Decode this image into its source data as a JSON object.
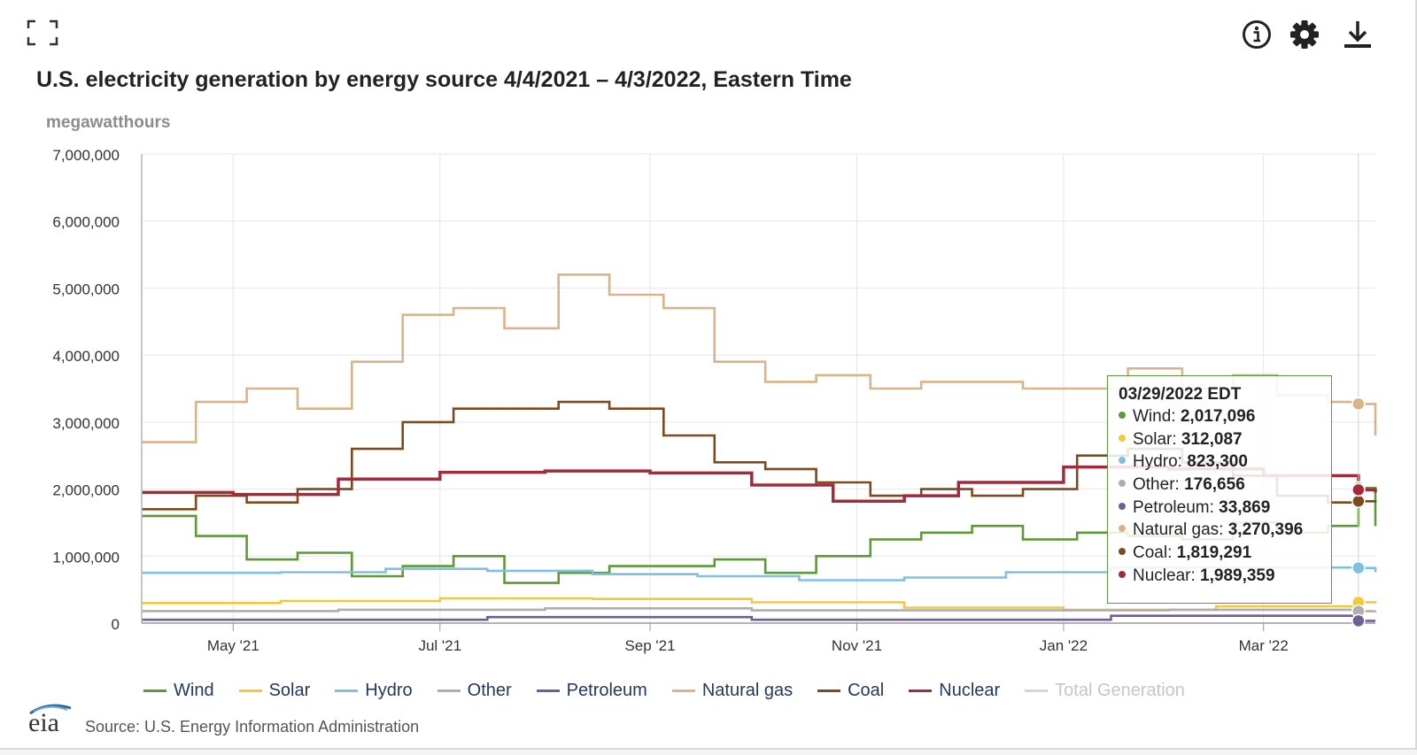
{
  "toolbar": {
    "fullscreen_icon": "fullscreen-icon",
    "info_icon": "info-icon",
    "settings_icon": "gear-icon",
    "download_icon": "download-icon"
  },
  "chart_data": {
    "type": "line",
    "title": "U.S. electricity generation by energy source 4/4/2021 – 4/3/2022, Eastern Time",
    "ylabel": "megawatthours",
    "xlabel": "",
    "ylim": [
      0,
      7000000
    ],
    "yticks": [
      "0",
      "1,000,000",
      "2,000,000",
      "3,000,000",
      "4,000,000",
      "5,000,000",
      "6,000,000",
      "7,000,000"
    ],
    "xticks": [
      "May '21",
      "Jul '21",
      "Sep '21",
      "Nov '21",
      "Jan '22",
      "Mar '22"
    ],
    "xtick_dates": [
      "2021-05-01",
      "2021-07-01",
      "2021-09-01",
      "2021-11-01",
      "2022-01-01",
      "2022-03-01"
    ],
    "xrange": [
      "2021-04-04",
      "2022-04-03"
    ],
    "grid": true,
    "legend_position": "bottom",
    "series": [
      {
        "name": "Wind",
        "color": "#5b9a36",
        "points": [
          [
            "2021-04-04",
            1600000
          ],
          [
            "2021-04-20",
            1300000
          ],
          [
            "2021-05-05",
            950000
          ],
          [
            "2021-05-20",
            1050000
          ],
          [
            "2021-06-05",
            700000
          ],
          [
            "2021-06-20",
            850000
          ],
          [
            "2021-07-05",
            1000000
          ],
          [
            "2021-07-20",
            600000
          ],
          [
            "2021-08-05",
            750000
          ],
          [
            "2021-08-20",
            850000
          ],
          [
            "2021-09-05",
            850000
          ],
          [
            "2021-09-20",
            950000
          ],
          [
            "2021-10-05",
            750000
          ],
          [
            "2021-10-20",
            1000000
          ],
          [
            "2021-11-05",
            1250000
          ],
          [
            "2021-11-20",
            1350000
          ],
          [
            "2021-12-05",
            1450000
          ],
          [
            "2021-12-20",
            1250000
          ],
          [
            "2022-01-05",
            1350000
          ],
          [
            "2022-01-20",
            1300000
          ],
          [
            "2022-02-05",
            1250000
          ],
          [
            "2022-02-20",
            1500000
          ],
          [
            "2022-03-05",
            1350000
          ],
          [
            "2022-03-20",
            1450000
          ],
          [
            "2022-03-29",
            2017096
          ],
          [
            "2022-04-03",
            1450000
          ]
        ]
      },
      {
        "name": "Solar",
        "color": "#f3c93a",
        "points": [
          [
            "2021-04-04",
            300000
          ],
          [
            "2021-05-15",
            330000
          ],
          [
            "2021-07-01",
            370000
          ],
          [
            "2021-08-15",
            360000
          ],
          [
            "2021-10-01",
            310000
          ],
          [
            "2021-11-15",
            230000
          ],
          [
            "2022-01-01",
            200000
          ],
          [
            "2022-02-15",
            250000
          ],
          [
            "2022-03-29",
            312087
          ],
          [
            "2022-04-03",
            330000
          ]
        ]
      },
      {
        "name": "Hydro",
        "color": "#7fc0e2",
        "points": [
          [
            "2021-04-04",
            750000
          ],
          [
            "2021-05-15",
            760000
          ],
          [
            "2021-06-15",
            810000
          ],
          [
            "2021-07-15",
            780000
          ],
          [
            "2021-08-15",
            730000
          ],
          [
            "2021-09-15",
            700000
          ],
          [
            "2021-10-15",
            640000
          ],
          [
            "2021-11-15",
            680000
          ],
          [
            "2021-12-15",
            760000
          ],
          [
            "2022-01-15",
            830000
          ],
          [
            "2022-02-15",
            830000
          ],
          [
            "2022-03-29",
            823300
          ],
          [
            "2022-04-03",
            760000
          ]
        ]
      },
      {
        "name": "Other",
        "color": "#aeaeae",
        "points": [
          [
            "2021-04-04",
            180000
          ],
          [
            "2021-06-01",
            200000
          ],
          [
            "2021-08-01",
            220000
          ],
          [
            "2021-10-01",
            190000
          ],
          [
            "2021-12-01",
            190000
          ],
          [
            "2022-02-01",
            200000
          ],
          [
            "2022-03-29",
            176656
          ],
          [
            "2022-04-03",
            180000
          ]
        ]
      },
      {
        "name": "Petroleum",
        "color": "#6f5f95",
        "points": [
          [
            "2021-04-04",
            50000
          ],
          [
            "2021-07-15",
            90000
          ],
          [
            "2021-10-01",
            50000
          ],
          [
            "2022-01-15",
            110000
          ],
          [
            "2022-03-29",
            33869
          ],
          [
            "2022-04-03",
            35000
          ]
        ]
      },
      {
        "name": "Natural gas",
        "color": "#d9b48b",
        "points": [
          [
            "2021-04-04",
            2700000
          ],
          [
            "2021-04-20",
            3300000
          ],
          [
            "2021-05-05",
            3500000
          ],
          [
            "2021-05-20",
            3200000
          ],
          [
            "2021-06-05",
            3900000
          ],
          [
            "2021-06-20",
            4600000
          ],
          [
            "2021-07-05",
            4700000
          ],
          [
            "2021-07-20",
            4400000
          ],
          [
            "2021-08-05",
            5200000
          ],
          [
            "2021-08-20",
            4900000
          ],
          [
            "2021-09-05",
            4700000
          ],
          [
            "2021-09-20",
            3900000
          ],
          [
            "2021-10-05",
            3600000
          ],
          [
            "2021-10-20",
            3700000
          ],
          [
            "2021-11-05",
            3500000
          ],
          [
            "2021-11-20",
            3600000
          ],
          [
            "2021-12-05",
            3600000
          ],
          [
            "2021-12-20",
            3500000
          ],
          [
            "2022-01-05",
            3500000
          ],
          [
            "2022-01-20",
            3800000
          ],
          [
            "2022-02-05",
            3500000
          ],
          [
            "2022-02-20",
            3700000
          ],
          [
            "2022-03-05",
            3400000
          ],
          [
            "2022-03-20",
            3300000
          ],
          [
            "2022-03-29",
            3270396
          ],
          [
            "2022-04-03",
            2800000
          ]
        ]
      },
      {
        "name": "Coal",
        "color": "#7c4a1e",
        "points": [
          [
            "2021-04-04",
            1700000
          ],
          [
            "2021-04-20",
            1900000
          ],
          [
            "2021-05-05",
            1800000
          ],
          [
            "2021-05-20",
            2000000
          ],
          [
            "2021-06-05",
            2600000
          ],
          [
            "2021-06-20",
            3000000
          ],
          [
            "2021-07-05",
            3200000
          ],
          [
            "2021-07-20",
            3200000
          ],
          [
            "2021-08-05",
            3300000
          ],
          [
            "2021-08-20",
            3200000
          ],
          [
            "2021-09-05",
            2800000
          ],
          [
            "2021-09-20",
            2400000
          ],
          [
            "2021-10-05",
            2300000
          ],
          [
            "2021-10-20",
            2100000
          ],
          [
            "2021-11-05",
            1900000
          ],
          [
            "2021-11-20",
            2000000
          ],
          [
            "2021-12-05",
            1900000
          ],
          [
            "2021-12-20",
            2000000
          ],
          [
            "2022-01-05",
            2500000
          ],
          [
            "2022-01-20",
            2600000
          ],
          [
            "2022-02-05",
            2400000
          ],
          [
            "2022-02-20",
            2200000
          ],
          [
            "2022-03-05",
            1900000
          ],
          [
            "2022-03-20",
            1800000
          ],
          [
            "2022-03-29",
            1819291
          ],
          [
            "2022-04-03",
            1800000
          ]
        ]
      },
      {
        "name": "Nuclear",
        "color": "#a12b3a",
        "points": [
          [
            "2021-04-04",
            1950000
          ],
          [
            "2021-05-01",
            1920000
          ],
          [
            "2021-06-01",
            2150000
          ],
          [
            "2021-07-01",
            2250000
          ],
          [
            "2021-08-01",
            2270000
          ],
          [
            "2021-09-01",
            2240000
          ],
          [
            "2021-10-01",
            2060000
          ],
          [
            "2021-10-25",
            1820000
          ],
          [
            "2021-11-15",
            1900000
          ],
          [
            "2021-12-01",
            2100000
          ],
          [
            "2022-01-01",
            2330000
          ],
          [
            "2022-02-01",
            2300000
          ],
          [
            "2022-03-01",
            2200000
          ],
          [
            "2022-03-29",
            1989359
          ],
          [
            "2022-04-03",
            1950000
          ]
        ]
      }
    ],
    "legend_extra": {
      "name": "Total Generation",
      "color": "#d7d7d7",
      "hidden": true
    },
    "tooltip": {
      "date": "03/29/2022 EDT",
      "rows": [
        {
          "label": "Wind:",
          "value": "2,017,096",
          "color": "#5b9a36"
        },
        {
          "label": "Solar:",
          "value": "312,087",
          "color": "#f3c93a"
        },
        {
          "label": "Hydro:",
          "value": "823,300",
          "color": "#7fc0e2"
        },
        {
          "label": "Other:",
          "value": "176,656",
          "color": "#aeaeae"
        },
        {
          "label": "Petroleum:",
          "value": "33,869",
          "color": "#6f5f95"
        },
        {
          "label": "Natural gas:",
          "value": "3,270,396",
          "color": "#d9b48b"
        },
        {
          "label": "Coal:",
          "value": "1,819,291",
          "color": "#7c4a1e"
        },
        {
          "label": "Nuclear:",
          "value": "1,989,359",
          "color": "#a12b3a"
        }
      ]
    }
  },
  "footer": {
    "logo_text": "eia",
    "source": "Source: U.S. Energy Information Administration"
  }
}
